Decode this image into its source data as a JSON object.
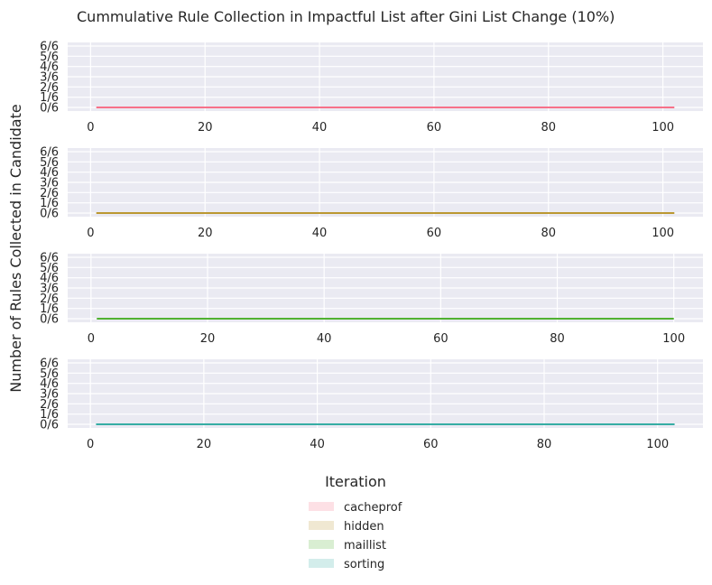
{
  "chart_data": {
    "type": "line",
    "title": "Cummulative Rule Collection in Impactful List after Gini List Change (10%)",
    "xlabel": "Iteration",
    "ylabel": "Number of Rules Collected in Candidate",
    "y_ticks": [
      "0/6",
      "1/6",
      "2/6",
      "3/6",
      "4/6",
      "5/6",
      "6/6"
    ],
    "grid": true,
    "legend_position": "bottom-center",
    "subplots": [
      {
        "series": "cacheprof",
        "color": "#f77189",
        "xlim": [
          -4,
          107
        ],
        "x_ticks": [
          0,
          20,
          40,
          60,
          80,
          100
        ],
        "x_range": [
          1,
          102
        ],
        "value": 0
      },
      {
        "series": "hidden",
        "color": "#bb9832",
        "xlim": [
          -4,
          107
        ],
        "x_ticks": [
          0,
          20,
          40,
          60,
          80,
          100
        ],
        "x_range": [
          1,
          102
        ],
        "value": 0
      },
      {
        "series": "maillist",
        "color": "#50b131",
        "xlim": [
          -4,
          105
        ],
        "x_ticks": [
          0,
          20,
          40,
          60,
          80,
          100
        ],
        "x_range": [
          1,
          100
        ],
        "value": 0
      },
      {
        "series": "sorting",
        "color": "#36ada4",
        "xlim": [
          -4,
          108
        ],
        "x_ticks": [
          0,
          20,
          40,
          60,
          80,
          100
        ],
        "x_range": [
          1,
          103
        ],
        "value": 0
      }
    ],
    "legend": [
      {
        "label": "cacheprof",
        "color": "#f77189"
      },
      {
        "label": "hidden",
        "color": "#bb9832"
      },
      {
        "label": "maillist",
        "color": "#50b131"
      },
      {
        "label": "sorting",
        "color": "#36ada4"
      }
    ]
  }
}
